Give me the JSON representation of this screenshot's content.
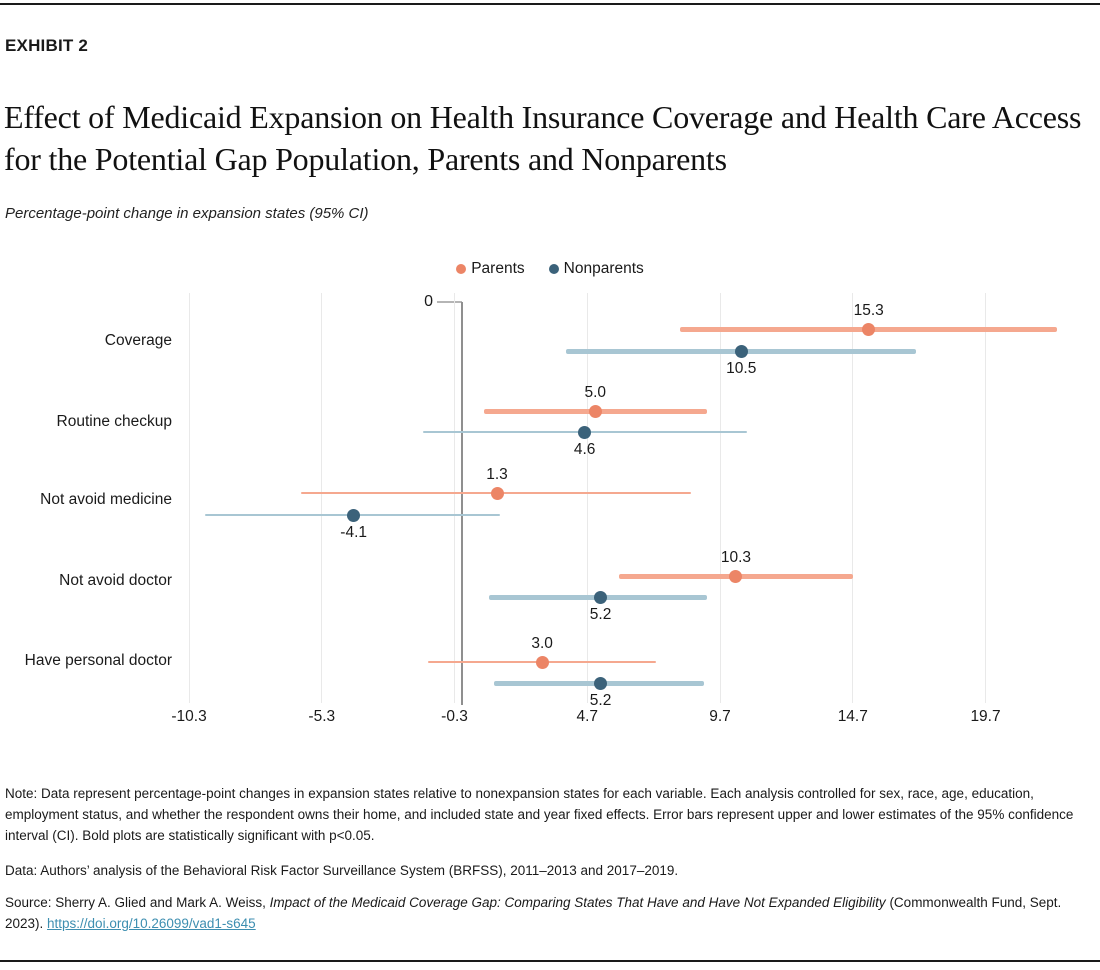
{
  "page": {
    "exhibit_label": "EXHIBIT 2",
    "title": "Effect of Medicaid Expansion on Health Insurance Coverage and Health Care Access for the Potential Gap Population, Parents and Nonparents",
    "subtitle": "Percentage-point change in expansion states (95% CI)"
  },
  "chart_data": {
    "type": "scatter",
    "subtype": "forest-dot-plot-with-error-bars",
    "orientation": "horizontal",
    "title": "Percentage-point change in expansion states (95% CI)",
    "categories": [
      "Coverage",
      "Routine checkup",
      "Not avoid medicine",
      "Not avoid doctor",
      "Have personal doctor"
    ],
    "series": [
      {
        "name": "Parents",
        "values": [
          15.3,
          5.0,
          1.3,
          10.3,
          3.0
        ],
        "labels": [
          "15.3",
          "5.0",
          "1.3",
          "10.3",
          "3.0"
        ],
        "ci_low": [
          8.2,
          0.8,
          -6.1,
          5.9,
          -1.3
        ],
        "ci_high": [
          22.4,
          9.2,
          8.6,
          14.7,
          7.3
        ],
        "significant": [
          true,
          true,
          false,
          true,
          false
        ],
        "point_color": "#EC8566",
        "line_color": "#F5A88F"
      },
      {
        "name": "Nonparents",
        "values": [
          10.5,
          4.6,
          -4.1,
          5.2,
          5.2
        ],
        "labels": [
          "10.5",
          "4.6",
          "-4.1",
          "5.2",
          "5.2"
        ],
        "ci_low": [
          3.9,
          -1.5,
          -9.7,
          1.0,
          1.2
        ],
        "ci_high": [
          17.1,
          10.7,
          1.4,
          9.2,
          9.1
        ],
        "significant": [
          true,
          false,
          false,
          true,
          true
        ],
        "point_color": "#3B627A",
        "line_color": "#A8C6D3"
      }
    ],
    "x_axis": {
      "zero_label": "0",
      "ticks": [
        -10.3,
        -5.3,
        -0.3,
        4.7,
        9.7,
        14.7,
        19.7
      ],
      "tick_labels": [
        "-10.3",
        "-5.3",
        "-0.3",
        "4.7",
        "9.7",
        "14.7",
        "19.7"
      ],
      "range": [
        -11.8,
        23.2
      ],
      "zero_reference_line": 0
    },
    "legend": {
      "position": "top-center"
    },
    "grid": true,
    "value_label_rule": "Parents labeled above point, Nonparents labeled below point; bold (thick) bars are statistically significant"
  },
  "notes": {
    "note": "Note: Data represent percentage-point changes in expansion states relative to nonexpansion states for each variable. Each analysis controlled for sex, race, age, education, employment status, and whether the respondent owns their home, and included state and year fixed effects. Error bars represent upper and lower estimates of the 95% confidence interval (CI). Bold plots are statistically significant with p<0.05.",
    "data_line": "Data: Authors’ analysis of the Behavioral Risk Factor Surveillance System (BRFSS), 2011–2013 and 2017–2019.",
    "source_prefix": "Source: Sherry A. Glied and Mark A. Weiss, ",
    "source_italic": "Impact of the Medicaid Coverage Gap: Comparing States That Have and Have Not Expanded Eligibility",
    "source_suffix": " (Commonwealth Fund, Sept. 2023). ",
    "source_link": "https://doi.org/10.26099/vad1-s645"
  },
  "colors": {
    "gridline": "#E9E9E9",
    "zero_line": "#8F8F8F",
    "link": "#3D8EB0",
    "text": "#1A1A1A",
    "rule": "#1A1A1A"
  }
}
